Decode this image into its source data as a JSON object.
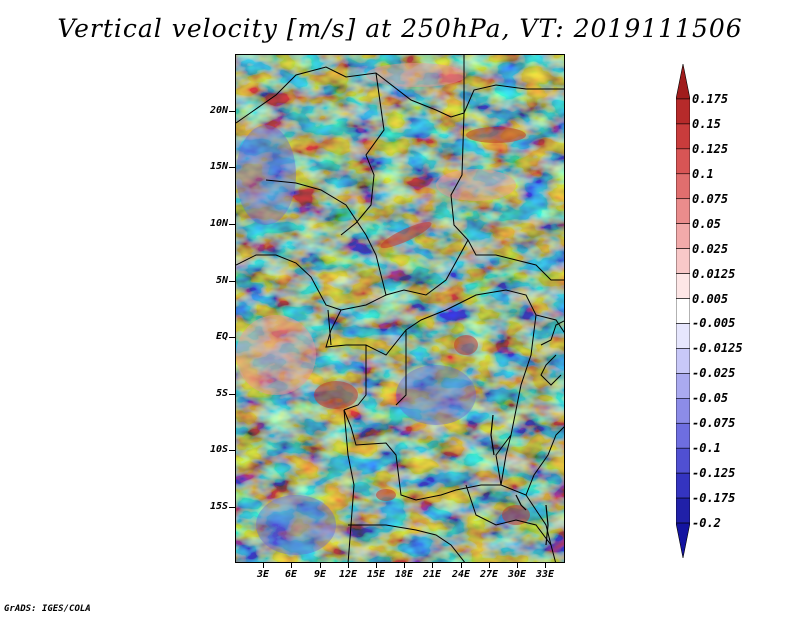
{
  "title": "Vertical velocity [m/s] at 250hPa, VT: 2019111506",
  "footer": "GrADS: IGES/COLA",
  "map": {
    "lat_labels": [
      "20N",
      "15N",
      "10N",
      "5N",
      "EQ",
      "5S",
      "10S",
      "15S"
    ],
    "lon_labels": [
      "3E",
      "6E",
      "9E",
      "12E",
      "15E",
      "18E",
      "21E",
      "24E",
      "27E",
      "30E",
      "33E"
    ]
  },
  "colorbar": {
    "labels": [
      "0.175",
      "0.15",
      "0.125",
      "0.1",
      "0.075",
      "0.05",
      "0.025",
      "0.0125",
      "0.005",
      "-0.005",
      "-0.0125",
      "-0.025",
      "-0.05",
      "-0.075",
      "-0.1",
      "-0.125",
      "-0.175",
      "-0.2"
    ],
    "colors": [
      "#a01c1c",
      "#b62a2a",
      "#c93c3c",
      "#d85555",
      "#e06e6e",
      "#ea8c8c",
      "#f2aaaa",
      "#f8c8c8",
      "#fde6e6",
      "#ffffff",
      "#e6e6fd",
      "#c8c8f8",
      "#aaaaf0",
      "#8c8ce8",
      "#6e6ee0",
      "#5050d2",
      "#3434c0",
      "#2020a8",
      "#1414a0"
    ]
  }
}
